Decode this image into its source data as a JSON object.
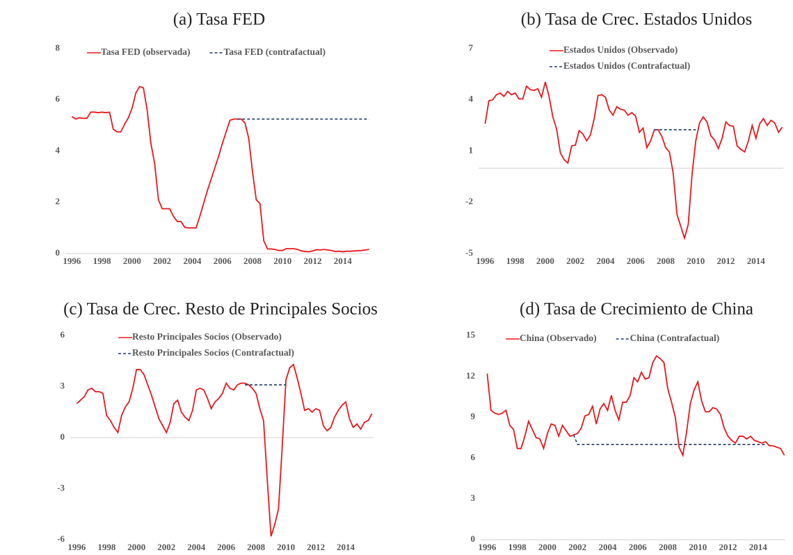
{
  "chart_data": [
    {
      "type": "line",
      "title": "(a) Tasa FED",
      "xlim": [
        1995.75,
        2016
      ],
      "xticks": [
        1996,
        1998,
        2000,
        2002,
        2004,
        2006,
        2008,
        2010,
        2012,
        2014
      ],
      "ylim": [
        0,
        8
      ],
      "yticks": [
        0,
        2,
        4,
        6,
        8
      ],
      "legend_columns": 2,
      "x": [
        1996,
        1996.25,
        1996.5,
        1996.75,
        1997,
        1997.25,
        1997.5,
        1997.75,
        1998,
        1998.25,
        1998.5,
        1998.75,
        1999,
        1999.25,
        1999.5,
        1999.75,
        2000,
        2000.25,
        2000.5,
        2000.75,
        2001,
        2001.25,
        2001.5,
        2001.75,
        2002,
        2002.25,
        2002.5,
        2002.75,
        2003,
        2003.25,
        2003.5,
        2003.75,
        2004,
        2004.25,
        2004.5,
        2004.75,
        2005,
        2005.25,
        2005.5,
        2005.75,
        2006,
        2006.25,
        2006.5,
        2006.75,
        2007,
        2007.25,
        2007.5,
        2007.75,
        2008,
        2008.25,
        2008.5,
        2008.75,
        2009,
        2009.25,
        2009.5,
        2009.75,
        2010,
        2010.25,
        2010.5,
        2010.75,
        2011,
        2011.25,
        2011.5,
        2011.75,
        2012,
        2012.25,
        2012.5,
        2012.75,
        2013,
        2013.25,
        2013.5,
        2013.75,
        2014,
        2014.25,
        2014.5,
        2014.75,
        2015,
        2015.25,
        2015.5,
        2015.75
      ],
      "series": [
        {
          "name": "Tasa FED (observada)",
          "color": "#e8161b",
          "dashed": false,
          "values": [
            5.35,
            5.25,
            5.3,
            5.28,
            5.28,
            5.52,
            5.52,
            5.5,
            5.52,
            5.5,
            5.52,
            4.85,
            4.75,
            4.75,
            5.05,
            5.3,
            5.68,
            6.27,
            6.52,
            6.47,
            5.6,
            4.3,
            3.5,
            2.1,
            1.75,
            1.75,
            1.75,
            1.45,
            1.25,
            1.25,
            1.02,
            1.0,
            1.0,
            1.0,
            1.45,
            1.95,
            2.45,
            2.9,
            3.35,
            3.8,
            4.3,
            4.75,
            5.2,
            5.25,
            5.25,
            5.25,
            5.1,
            4.5,
            3.2,
            2.1,
            1.95,
            0.5,
            0.18,
            0.18,
            0.16,
            0.12,
            0.12,
            0.19,
            0.19,
            0.19,
            0.16,
            0.1,
            0.08,
            0.07,
            0.1,
            0.15,
            0.14,
            0.16,
            0.14,
            0.12,
            0.08,
            0.09,
            0.07,
            0.09,
            0.09,
            0.1,
            0.11,
            0.12,
            0.14,
            0.16
          ]
        },
        {
          "name": "Tasa FED (contrafactual)",
          "color": "#1f3864",
          "dashed": true,
          "x": [
            2007,
            2015.75
          ],
          "values": [
            5.25,
            5.25
          ]
        }
      ]
    },
    {
      "type": "line",
      "title": "(b) Tasa de Crec. Estados Unidos",
      "xlim": [
        1995.75,
        2016
      ],
      "xticks": [
        1996,
        1998,
        2000,
        2002,
        2004,
        2006,
        2008,
        2010,
        2012,
        2014
      ],
      "ylim": [
        -5,
        7
      ],
      "yticks": [
        -5,
        -2,
        1,
        4,
        7
      ],
      "legend_columns": 1,
      "x": [
        1996,
        1996.25,
        1996.5,
        1996.75,
        1997,
        1997.25,
        1997.5,
        1997.75,
        1998,
        1998.25,
        1998.5,
        1998.75,
        1999,
        1999.25,
        1999.5,
        1999.75,
        2000,
        2000.25,
        2000.5,
        2000.75,
        2001,
        2001.25,
        2001.5,
        2001.75,
        2002,
        2002.25,
        2002.5,
        2002.75,
        2003,
        2003.25,
        2003.5,
        2003.75,
        2004,
        2004.25,
        2004.5,
        2004.75,
        2005,
        2005.25,
        2005.5,
        2005.75,
        2006,
        2006.25,
        2006.5,
        2006.75,
        2007,
        2007.25,
        2007.5,
        2007.75,
        2008,
        2008.25,
        2008.5,
        2008.75,
        2009,
        2009.25,
        2009.5,
        2009.75,
        2010,
        2010.25,
        2010.5,
        2010.75,
        2011,
        2011.25,
        2011.5,
        2011.75,
        2012,
        2012.25,
        2012.5,
        2012.75,
        2013,
        2013.25,
        2013.5,
        2013.75,
        2014,
        2014.25,
        2014.5,
        2014.75,
        2015,
        2015.25,
        2015.5,
        2015.75
      ],
      "series": [
        {
          "name": "Estados Unidos (Observado)",
          "color": "#e8161b",
          "dashed": false,
          "values": [
            2.6,
            3.95,
            4.0,
            4.3,
            4.4,
            4.2,
            4.5,
            4.3,
            4.4,
            4.05,
            4.05,
            4.8,
            4.6,
            4.55,
            4.65,
            4.15,
            5.05,
            4.2,
            3.0,
            2.3,
            0.9,
            0.5,
            0.3,
            1.3,
            1.35,
            2.2,
            2.0,
            1.6,
            1.95,
            2.9,
            4.25,
            4.3,
            4.15,
            3.4,
            3.1,
            3.6,
            3.45,
            3.4,
            3.1,
            3.25,
            3.05,
            2.1,
            2.35,
            1.2,
            1.6,
            2.25,
            2.25,
            1.85,
            1.2,
            0.95,
            -0.3,
            -2.7,
            -3.4,
            -4.1,
            -3.3,
            -0.4,
            1.6,
            2.65,
            3.0,
            2.7,
            1.9,
            1.65,
            1.15,
            1.75,
            2.7,
            2.5,
            2.45,
            1.3,
            1.1,
            0.95,
            1.6,
            2.5,
            1.75,
            2.6,
            2.9,
            2.5,
            2.8,
            2.65,
            2.1,
            2.4
          ]
        },
        {
          "name": "Estados Unidos (Contrafactual)",
          "color": "#1f3864",
          "dashed": true,
          "x": [
            2007.25,
            2010
          ],
          "values": [
            2.25,
            2.25
          ]
        }
      ]
    },
    {
      "type": "line",
      "title": "(c) Tasa de Crec. Resto de Principales Socios",
      "xlim": [
        1995.75,
        2016
      ],
      "xticks": [
        1996,
        1998,
        2000,
        2002,
        2004,
        2006,
        2008,
        2010,
        2012,
        2014
      ],
      "ylim": [
        -6,
        6
      ],
      "yticks": [
        -6,
        -3,
        0,
        3,
        6
      ],
      "legend_columns": 1,
      "x": [
        1996,
        1996.25,
        1996.5,
        1996.75,
        1997,
        1997.25,
        1997.5,
        1997.75,
        1998,
        1998.25,
        1998.5,
        1998.75,
        1999,
        1999.25,
        1999.5,
        1999.75,
        2000,
        2000.25,
        2000.5,
        2000.75,
        2001,
        2001.25,
        2001.5,
        2001.75,
        2002,
        2002.25,
        2002.5,
        2002.75,
        2003,
        2003.25,
        2003.5,
        2003.75,
        2004,
        2004.25,
        2004.5,
        2004.75,
        2005,
        2005.25,
        2005.5,
        2005.75,
        2006,
        2006.25,
        2006.5,
        2006.75,
        2007,
        2007.25,
        2007.5,
        2007.75,
        2008,
        2008.25,
        2008.5,
        2008.75,
        2009,
        2009.25,
        2009.5,
        2009.75,
        2010,
        2010.25,
        2010.5,
        2010.75,
        2011,
        2011.25,
        2011.5,
        2011.75,
        2012,
        2012.25,
        2012.5,
        2012.75,
        2013,
        2013.25,
        2013.5,
        2013.75,
        2014,
        2014.25,
        2014.5,
        2014.75,
        2015,
        2015.25,
        2015.5,
        2015.75
      ],
      "series": [
        {
          "name": "Resto Principales Socios (Observado)",
          "color": "#e8161b",
          "dashed": false,
          "values": [
            2.0,
            2.2,
            2.4,
            2.8,
            2.9,
            2.7,
            2.7,
            2.6,
            1.3,
            1.0,
            0.6,
            0.3,
            1.3,
            1.8,
            2.1,
            2.9,
            4.0,
            4.0,
            3.7,
            3.1,
            2.5,
            1.8,
            1.1,
            0.7,
            0.3,
            0.9,
            2.0,
            2.2,
            1.5,
            1.2,
            1.0,
            1.6,
            2.8,
            2.9,
            2.8,
            2.3,
            1.7,
            2.1,
            2.3,
            2.6,
            3.2,
            2.9,
            2.8,
            3.1,
            3.2,
            3.2,
            3.1,
            2.9,
            2.6,
            1.7,
            1.0,
            -2.5,
            -5.8,
            -5.1,
            -4.2,
            -0.5,
            3.4,
            4.1,
            4.3,
            3.5,
            2.6,
            1.6,
            1.7,
            1.5,
            1.7,
            1.6,
            0.7,
            0.4,
            0.6,
            1.2,
            1.6,
            1.9,
            2.1,
            1.1,
            0.6,
            0.8,
            0.5,
            0.9,
            1.0,
            1.4
          ]
        },
        {
          "name": "Resto Principales Socios (Contrafactual)",
          "color": "#1f3864",
          "dashed": true,
          "x": [
            2007.25,
            2010
          ],
          "values": [
            3.1,
            3.1
          ]
        }
      ]
    },
    {
      "type": "line",
      "title": "(d) Tasa de Crecimiento de China",
      "xlim": [
        1995.75,
        2016
      ],
      "xticks": [
        1996,
        1998,
        2000,
        2002,
        2004,
        2006,
        2008,
        2010,
        2012,
        2014
      ],
      "ylim": [
        0,
        15
      ],
      "yticks": [
        0,
        3,
        6,
        9,
        12,
        15
      ],
      "legend_columns": 2,
      "x": [
        1996,
        1996.25,
        1996.5,
        1996.75,
        1997,
        1997.25,
        1997.5,
        1997.75,
        1998,
        1998.25,
        1998.5,
        1998.75,
        1999,
        1999.25,
        1999.5,
        1999.75,
        2000,
        2000.25,
        2000.5,
        2000.75,
        2001,
        2001.25,
        2001.5,
        2001.75,
        2002,
        2002.25,
        2002.5,
        2002.75,
        2003,
        2003.25,
        2003.5,
        2003.75,
        2004,
        2004.25,
        2004.5,
        2004.75,
        2005,
        2005.25,
        2005.5,
        2005.75,
        2006,
        2006.25,
        2006.5,
        2006.75,
        2007,
        2007.25,
        2007.5,
        2007.75,
        2008,
        2008.25,
        2008.5,
        2008.75,
        2009,
        2009.25,
        2009.5,
        2009.75,
        2010,
        2010.25,
        2010.5,
        2010.75,
        2011,
        2011.25,
        2011.5,
        2011.75,
        2012,
        2012.25,
        2012.5,
        2012.75,
        2013,
        2013.25,
        2013.5,
        2013.75,
        2014,
        2014.25,
        2014.5,
        2014.75,
        2015,
        2015.25,
        2015.5,
        2015.75
      ],
      "series": [
        {
          "name": "China (Observado)",
          "color": "#e8161b",
          "dashed": false,
          "values": [
            12.2,
            9.5,
            9.3,
            9.2,
            9.3,
            9.5,
            8.4,
            8.1,
            6.7,
            6.7,
            7.6,
            8.7,
            8.1,
            7.5,
            7.4,
            6.7,
            7.8,
            8.5,
            8.4,
            7.6,
            8.4,
            8.0,
            7.6,
            7.7,
            7.8,
            8.2,
            9.1,
            9.2,
            9.8,
            8.5,
            9.6,
            10.0,
            9.5,
            10.6,
            9.5,
            8.8,
            10.1,
            10.1,
            10.6,
            11.9,
            11.6,
            12.3,
            11.8,
            11.9,
            13.0,
            13.5,
            13.3,
            13.0,
            11.1,
            10.1,
            9.0,
            6.8,
            6.2,
            7.9,
            10.0,
            11.0,
            11.6,
            10.2,
            9.4,
            9.4,
            9.7,
            9.6,
            9.2,
            8.2,
            7.6,
            7.3,
            7.1,
            7.6,
            7.6,
            7.4,
            7.6,
            7.3,
            7.2,
            7.1,
            7.2,
            6.9,
            6.9,
            6.8,
            6.7,
            6.2
          ]
        },
        {
          "name": "China (Contrafactual)",
          "color": "#1f3864",
          "dashed": true,
          "x": [
            2001.75,
            2002,
            2014.5
          ],
          "values": [
            7.7,
            7.0,
            7.0
          ]
        }
      ]
    }
  ]
}
